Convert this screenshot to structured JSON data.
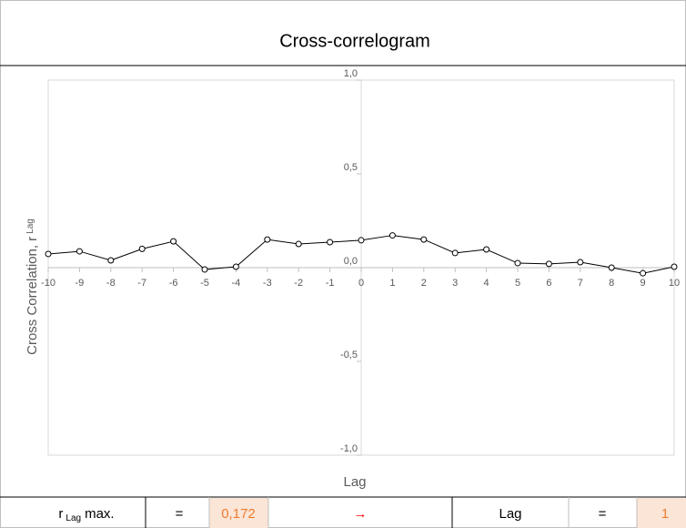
{
  "chart_data": {
    "type": "line",
    "title": "Cross-correlogram",
    "x_label": "Lag",
    "y_label": "Cross Correlation, r",
    "y_label_subscript": "Lag",
    "x": [
      -10,
      -9,
      -8,
      -7,
      -6,
      -5,
      -4,
      -3,
      -2,
      -1,
      0,
      1,
      2,
      3,
      4,
      5,
      6,
      7,
      8,
      9,
      10
    ],
    "series": [
      {
        "color": "#000000",
        "values": [
          0.073,
          0.087,
          0.039,
          0.1,
          0.14,
          -0.01,
          0.005,
          0.15,
          0.126,
          0.136,
          0.146,
          0.172,
          0.15,
          0.078,
          0.097,
          0.024,
          0.02,
          0.029,
          0.0,
          -0.03,
          0.005
        ]
      }
    ],
    "xlim": [
      -10,
      10
    ],
    "xticks": [
      -10,
      -9,
      -8,
      -7,
      -6,
      -5,
      -4,
      -3,
      -2,
      -1,
      0,
      1,
      2,
      3,
      4,
      5,
      6,
      7,
      8,
      9,
      10
    ],
    "ylim": [
      -1,
      1
    ],
    "yticks": [
      {
        "value": -1,
        "label": "-1,0"
      },
      {
        "value": -0.5,
        "label": "-0,5"
      },
      {
        "value": 0,
        "label": "0,0"
      },
      {
        "value": 0.5,
        "label": "0,5"
      },
      {
        "value": 1,
        "label": "1,0"
      }
    ],
    "grid": false
  },
  "footer": {
    "r_symbol": "r",
    "r_subscript": "Lag",
    "r_suffix": "max.",
    "equals_1": "=",
    "r_max": "0,172",
    "arrow": "→",
    "lag_label": "Lag",
    "equals_2": "=",
    "lag_value": "1"
  }
}
